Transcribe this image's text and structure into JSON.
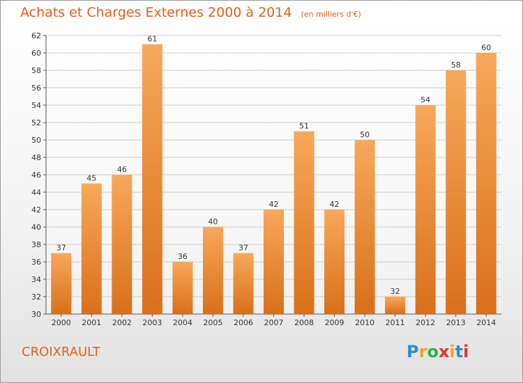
{
  "title": "Achats et Charges Externes 2000 à 2014",
  "subtitle": "(en milliers d'€)",
  "commune": "CROIXRAULT",
  "logo": {
    "letters": [
      "P",
      "r",
      "o",
      "x",
      "i",
      "t",
      "i"
    ],
    "colors": [
      "#2a8fd6",
      "#f5a21c",
      "#2db34a",
      "#e8332a",
      "#f5a21c",
      "#2a8fd6",
      "#e8332a"
    ]
  },
  "colors": {
    "bar_top": "#f7a85a",
    "bar_bottom": "#d9701a",
    "title": "#e0601a",
    "grid": "#cccccc"
  },
  "chart_data": {
    "type": "bar",
    "title": "Achats et Charges Externes 2000 à 2014",
    "categories": [
      "2000",
      "2001",
      "2002",
      "2003",
      "2004",
      "2005",
      "2006",
      "2007",
      "2008",
      "2009",
      "2010",
      "2011",
      "2012",
      "2013",
      "2014"
    ],
    "values": [
      37,
      45,
      46,
      61,
      36,
      40,
      37,
      42,
      51,
      42,
      50,
      32,
      54,
      58,
      60
    ],
    "ylim": [
      30,
      62
    ],
    "yticks": [
      30,
      32,
      34,
      36,
      38,
      40,
      42,
      44,
      46,
      48,
      50,
      52,
      54,
      56,
      58,
      60,
      62
    ],
    "grid": true
  }
}
